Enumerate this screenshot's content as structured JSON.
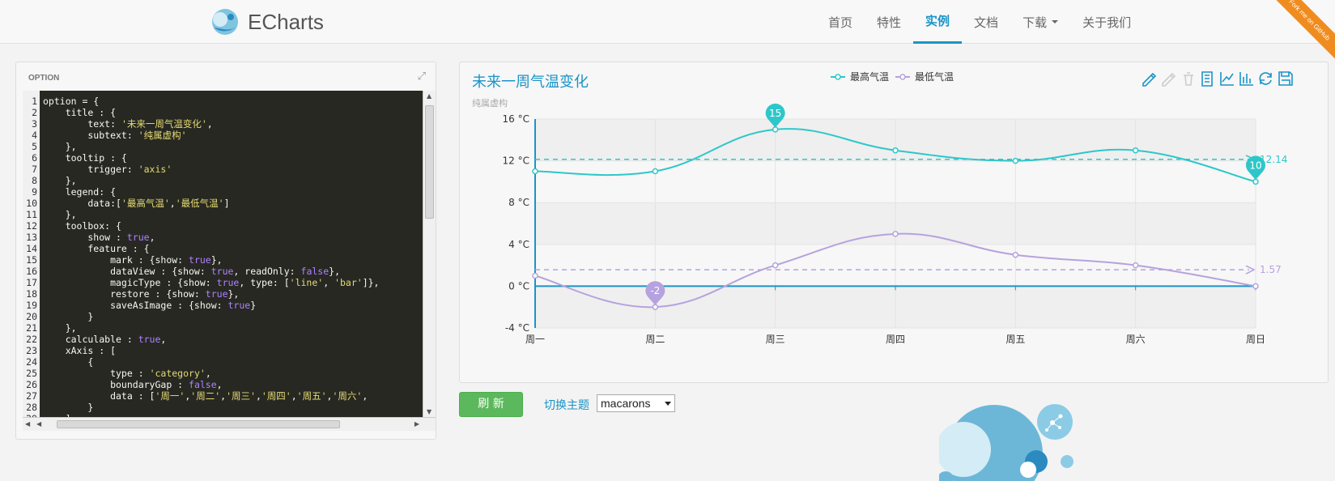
{
  "brand": {
    "name": "ECharts"
  },
  "nav": {
    "items": [
      "首页",
      "特性",
      "实例",
      "文档",
      "下载",
      "关于我们"
    ],
    "active": 2
  },
  "ribbon": {
    "text": "Fork me on GitHub"
  },
  "editor": {
    "header": "OPTION",
    "lines": [
      "option = {",
      "    title : {",
      "        text: '未来一周气温变化',",
      "        subtext: '纯属虚构'",
      "    },",
      "    tooltip : {",
      "        trigger: 'axis'",
      "    },",
      "    legend: {",
      "        data:['最高气温','最低气温']",
      "    },",
      "    toolbox: {",
      "        show : true,",
      "        feature : {",
      "            mark : {show: true},",
      "            dataView : {show: true, readOnly: false},",
      "            magicType : {show: true, type: ['line', 'bar']},",
      "            restore : {show: true},",
      "            saveAsImage : {show: true}",
      "        }",
      "    },",
      "    calculable : true,",
      "    xAxis : [",
      "        {",
      "            type : 'category',",
      "            boundaryGap : false,",
      "            data : ['周一','周二','周三','周四','周五','周六',",
      "        }",
      "    ],"
    ]
  },
  "controls": {
    "refresh": "刷 新",
    "theme_label": "切换主题",
    "theme_value": "macarons"
  },
  "chart_data": {
    "type": "line",
    "title": "未来一周气温变化",
    "subtitle": "纯属虚构",
    "categories": [
      "周一",
      "周二",
      "周三",
      "周四",
      "周五",
      "周六",
      "周日"
    ],
    "series": [
      {
        "name": "最高气温",
        "values": [
          11,
          11,
          15,
          13,
          12,
          13,
          10
        ],
        "color": "#2ec7c9",
        "average": 12.14,
        "max_label": "15",
        "min_label": "10"
      },
      {
        "name": "最低气温",
        "values": [
          1,
          -2,
          2,
          5,
          3,
          2,
          0
        ],
        "color": "#b6a2de",
        "average": 1.57,
        "min_label": "-2"
      }
    ],
    "yticks": [
      "16 °C",
      "12 °C",
      "8 °C",
      "4 °C",
      "0 °C",
      "-4 °C"
    ],
    "ylim": [
      -4,
      16
    ],
    "legend_position": "top-center",
    "grid": true
  }
}
